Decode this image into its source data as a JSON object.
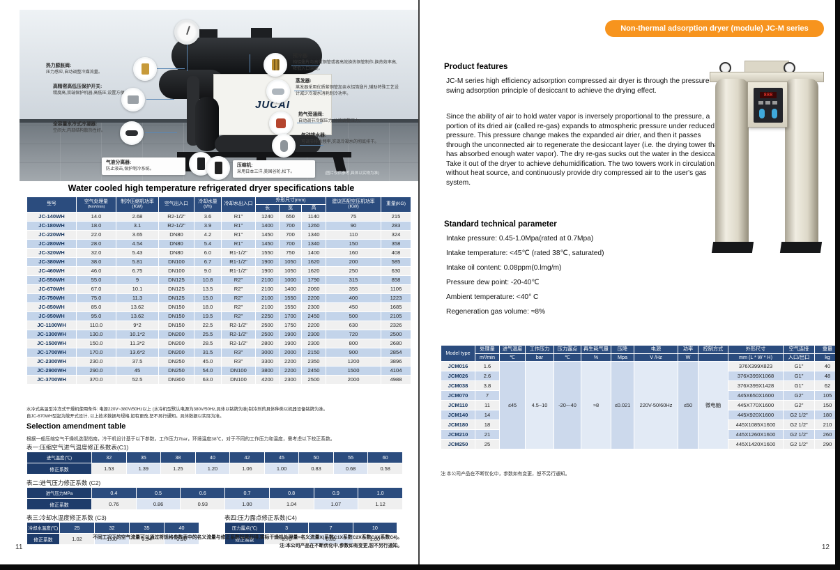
{
  "colors": {
    "accent_orange": "#f7941e",
    "header_navy": "#2b4c7e",
    "row_blue": "#c3d4ea"
  },
  "page_left": {
    "page_number": "11",
    "hero": {
      "brand": "JUCAI",
      "caption": "(图片仅供参考,具体以实物为准)",
      "callouts": [
        {
          "title": "热力膨胀阀:",
          "desc": "压力感应,自动调整冷媒流量。"
        },
        {
          "title": "高精密高低压保护开关:",
          "desc": "精度高,双端保护机器,高低压,设置方便。"
        },
        {
          "title": "全容量水冷式冷凝器:",
          "desc": "空间大,内部结构散热性好。"
        },
        {
          "title": "气液分离器:",
          "desc": "防止液击,保护制冷系统。"
        },
        {
          "title": "压缩机:",
          "desc": "采用日本三洋,美国谷轮,松下。"
        },
        {
          "title": "预冷器:",
          "desc": "纯铝翅片与高效铜管或者高效换热铜管制作,换热效率高,降低入口温度。"
        },
        {
          "title": "蒸发器:",
          "desc": "蒸发器采用优质紫铜管加亲水铝箔翅片,辅助特殊工艺设计减少冷凝水消耗制冷功率。"
        },
        {
          "title": "热气旁通阀:",
          "desc": "自动调节冷媒压力,分流调整压力。"
        },
        {
          "title": "气动排水器:",
          "desc": "可调节排水频率,实现冷凝水的彻底排干。"
        }
      ]
    },
    "table_title": "Water cooled high temperature refrigerated dryer specifications table",
    "spec_table": {
      "h": {
        "model": "型号",
        "capacity": "空气处理量",
        "capacity_unit": "(Nm³/min)",
        "comp_power": "制冷压缩机功率(KW)",
        "air_io": "空气出入口",
        "water": "冷却水量(t/h)",
        "cw_io": "冷却水出入口",
        "dims": "外形尺寸(mm)",
        "len": "长",
        "wid": "宽",
        "hei": "高",
        "match": "建议匹配空压机功率(KW)",
        "weight": "重量(KG)"
      },
      "rows": [
        [
          "JC-140WH",
          "14.0",
          "2.68",
          "R2-1/2\"",
          "3.6",
          "R1\"",
          "1240",
          "650",
          "1140",
          "75",
          "215"
        ],
        [
          "JC-180WH",
          "18.0",
          "3.1",
          "R2-1/2\"",
          "3.9",
          "R1\"",
          "1400",
          "700",
          "1260",
          "90",
          "283"
        ],
        [
          "JC-220WH",
          "22.0",
          "3.65",
          "DN80",
          "4.2",
          "R1\"",
          "1450",
          "700",
          "1340",
          "110",
          "324"
        ],
        [
          "JC-280WH",
          "28.0",
          "4.54",
          "DN80",
          "5.4",
          "R1\"",
          "1450",
          "700",
          "1340",
          "150",
          "358"
        ],
        [
          "JC-320WH",
          "32.0",
          "5.43",
          "DN80",
          "6.0",
          "R1-1/2\"",
          "1550",
          "750",
          "1400",
          "160",
          "408"
        ],
        [
          "JC-380WH",
          "38.0",
          "5.81",
          "DN100",
          "6.7",
          "R1-1/2\"",
          "1900",
          "1050",
          "1620",
          "200",
          "585"
        ],
        [
          "JC-460WH",
          "46.0",
          "6.75",
          "DN100",
          "9.0",
          "R1-1/2\"",
          "1900",
          "1050",
          "1620",
          "250",
          "630"
        ],
        [
          "JC-550WH",
          "55.0",
          "9",
          "DN125",
          "10.8",
          "R2\"",
          "2100",
          "1000",
          "1790",
          "315",
          "858"
        ],
        [
          "JC-670WH",
          "67.0",
          "10.1",
          "DN125",
          "13.5",
          "R2\"",
          "2100",
          "1400",
          "2060",
          "355",
          "1106"
        ],
        [
          "JC-750WH",
          "75.0",
          "11.3",
          "DN125",
          "15.0",
          "R2\"",
          "2100",
          "1550",
          "2200",
          "400",
          "1223"
        ],
        [
          "JC-850WH",
          "85.0",
          "13.62",
          "DN150",
          "18.0",
          "R2\"",
          "2100",
          "1550",
          "2300",
          "450",
          "1685"
        ],
        [
          "JC-950WH",
          "95.0",
          "13.62",
          "DN150",
          "19.5",
          "R2\"",
          "2250",
          "1700",
          "2450",
          "500",
          "2105"
        ],
        [
          "JC-1100WH",
          "110.0",
          "9*2",
          "DN150",
          "22.5",
          "R2-1/2\"",
          "2500",
          "1750",
          "2200",
          "630",
          "2326"
        ],
        [
          "JC-1300WH",
          "130.0",
          "10.1*2",
          "DN200",
          "25.5",
          "R2-1/2\"",
          "2500",
          "1900",
          "2300",
          "720",
          "2500"
        ],
        [
          "JC-1500WH",
          "150.0",
          "11.3*2",
          "DN200",
          "28.5",
          "R2-1/2\"",
          "2800",
          "1900",
          "2300",
          "800",
          "2680"
        ],
        [
          "JC-1700WH",
          "170.0",
          "13.6*2",
          "DN200",
          "31.5",
          "R3\"",
          "3000",
          "2000",
          "2150",
          "900",
          "2854"
        ],
        [
          "JC-2300WH",
          "230.0",
          "37.5",
          "DN250",
          "45.0",
          "R3\"",
          "3300",
          "2200",
          "2350",
          "1200",
          "3896"
        ],
        [
          "JC-2900WH",
          "290.0",
          "45",
          "DN250",
          "54.0",
          "DN100",
          "3800",
          "2200",
          "2450",
          "1500",
          "4104"
        ],
        [
          "JC-3700WH",
          "370.0",
          "52.5",
          "DN300",
          "63.0",
          "DN100",
          "4200",
          "2300",
          "2500",
          "2000",
          "4988"
        ]
      ]
    },
    "notes": [
      "水冷式高温型冷冻式干燥机使用条件: 电源220V~380V/50Hz以上 (水冷机型默认电源为380V/50Hz,具体以铭牌为准)制冷剂的具体种类以机器设备铭牌为准。",
      "自JC-670WH型起为敞开式设计, 以上技术数据与规格,如有更改,恕不另行通知。具体数据以实际为准。"
    ],
    "amendment": {
      "heading": "Selection amendment table",
      "subtitle": "根据一般压缩空气干燥机选型指南，冷干机设计基于以下参数，工作压力7bar，环境温度38℃，对于不同的工作压力和温度，需考虑以下校正系数。",
      "c1": {
        "caption": "表一:压缩空气进气温度修正系数表(C1)",
        "label1": "进气温度(℃)",
        "label2": "修正系数",
        "values1": [
          "32",
          "35",
          "38",
          "40",
          "42",
          "45",
          "50",
          "55",
          "60"
        ],
        "values2": [
          "1.53",
          "1.39",
          "1.25",
          "1.20",
          "1.06",
          "1.00",
          "0.83",
          "0.68",
          "0.58"
        ]
      },
      "c2": {
        "caption": "表二:进气压力修正系数 (C2)",
        "label1": "进气压力MPa",
        "label2": "修正系数",
        "values1": [
          "0.4",
          "0.5",
          "0.6",
          "0.7",
          "0.8",
          "0.9",
          "1.0"
        ],
        "values2": [
          "0.76",
          "0.86",
          "0.93",
          "1.00",
          "1.04",
          "1.07",
          "1.12"
        ]
      },
      "c3": {
        "caption": "表三:冷却水温度修正系数 (C3)",
        "label1": "冷却水温度(℃)",
        "label2": "修正系数",
        "values1": [
          "25",
          "32",
          "35",
          "40"
        ],
        "values2": [
          "1.02",
          "1.00",
          "0.94",
          "0.90"
        ]
      },
      "c4": {
        "caption": "表四:压力露点修正系数(C4)",
        "label1": "压力露点(℃)",
        "label2": "修正系数",
        "values1": [
          "3",
          "7",
          "10"
        ],
        "values2": [
          "0.70",
          "0.85",
          "1.00"
        ]
      },
      "footnote1": "不同工况下的空气流量可以通过将规格参数表中的名义流量与修正系数相乘获得,实际干燥机处理量=名义流量X(系数C1X系数C2X系数C3X系数C4)。",
      "footnote2": "注:本公司产品在不断优化中,参数如有变更,恕不另行通知。"
    }
  },
  "page_right": {
    "page_number": "12",
    "badge": "Non-thermal adsorption dryer (module) JC-M series",
    "features_heading": "Product features",
    "features_p1": "JC-M series high efficiency adsorption compressed air dryer is through the pressure swing adsorption principle of desiccant to achieve the drying effect.",
    "features_p2": "Since the ability of air to hold water vapor is inversely proportional to the pressure, a portion of its dried air (called re-gas) expands to atmospheric pressure under reduced pressure. This pressure change makes the expanded air drier, and then it passes through the unconnected air to regenerate the desiccant layer (i.e. the drying tower that has absorbed enough water vapor). The dry re-gas sucks out the water in the desiccant. Take it out of the dryer to achieve dehumidification. The two towers work in circulation, without heat source, and continuously provide dry compressed air to the user's gas system.",
    "params_heading": "Standard technical parameter",
    "params": [
      "Intake pressure: 0.45-1.0Mpa(rated at 0.7Mpa)",
      "Intake temperature: <45℃ (rated 38℃, saturated)",
      "Intake oil content: 0.08ppm(0.lmg/m)",
      "Pressure dew point: -20-40℃",
      "Ambient temperature: <40° C",
      "Regeneration gas volume: ≈8%"
    ],
    "led_text": "888",
    "table": {
      "header_labels": [
        "Model type",
        "处理量",
        "进气温度",
        "工作压力",
        "压力露点",
        "再生耗气量",
        "压降",
        "电源",
        "功率",
        "控制方式",
        "外形尺寸",
        "空气连接",
        "重量"
      ],
      "header_units": [
        "",
        "m³/min",
        "℃",
        "bar",
        "℃",
        "%",
        "Mpa",
        "V /Hz",
        "W",
        "",
        "mm (L * W * H)",
        "入口/出口",
        "kg"
      ],
      "merged": [
        "≤45",
        "4.5~10",
        "-20~-40",
        "≈8",
        "≤0.021",
        "220V-50/60Hz",
        "≤50",
        "微电脑"
      ],
      "rows": [
        {
          "model": "JCM016",
          "capacity": "1.6",
          "dims": "376X399X823",
          "conn": "G1\"",
          "weight": "40"
        },
        {
          "model": "JCM026",
          "capacity": "2.6",
          "dims": "376X399X1068",
          "conn": "G1\"",
          "weight": "48"
        },
        {
          "model": "JCM038",
          "capacity": "3.8",
          "dims": "376X399X1428",
          "conn": "G1\"",
          "weight": "62"
        },
        {
          "model": "JCM070",
          "capacity": "7",
          "dims": "445X650X1600",
          "conn": "G2\"",
          "weight": "105"
        },
        {
          "model": "JCM110",
          "capacity": "11",
          "dims": "445X770X1600",
          "conn": "G2\"",
          "weight": "150"
        },
        {
          "model": "JCM140",
          "capacity": "14",
          "dims": "445X920X1600",
          "conn": "G2 1/2\"",
          "weight": "180"
        },
        {
          "model": "JCM180",
          "capacity": "18",
          "dims": "445X1085X1600",
          "conn": "G2 1/2\"",
          "weight": "210"
        },
        {
          "model": "JCM210",
          "capacity": "21",
          "dims": "445X1260X1600",
          "conn": "G2 1/2\"",
          "weight": "260"
        },
        {
          "model": "JCM250",
          "capacity": "25",
          "dims": "445X1420X1600",
          "conn": "G2 1/2\"",
          "weight": "290"
        }
      ],
      "note": "注:本公司产品在不断优化中，参数如有变更，恕不另行通知。"
    }
  }
}
